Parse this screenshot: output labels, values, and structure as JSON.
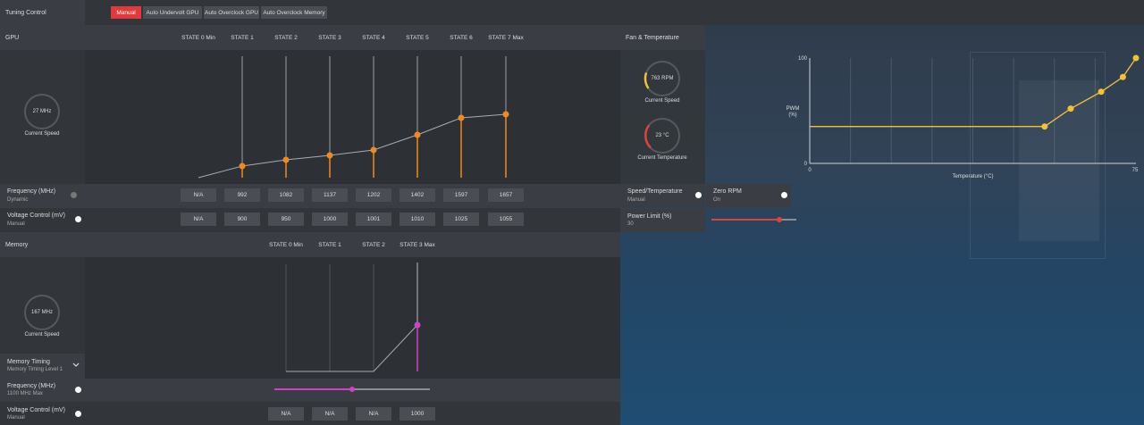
{
  "tuning": {
    "title": "Tuning Control",
    "tabs": [
      "Manual",
      "Auto Undervolt GPU",
      "Auto Overclock GPU",
      "Auto Overclock Memory"
    ]
  },
  "gpu": {
    "title": "GPU",
    "states": [
      "STATE 0 Min",
      "STATE 1",
      "STATE 2",
      "STATE 3",
      "STATE 4",
      "STATE 5",
      "STATE 6",
      "STATE 7 Max"
    ],
    "gauge": {
      "value": "27 MHz",
      "label": "Current Speed"
    },
    "frequency": {
      "label": "Frequency (MHz)",
      "sub": "Dynamic",
      "values": [
        "N/A",
        "992",
        "1082",
        "1137",
        "1202",
        "1402",
        "1597",
        "1657"
      ]
    },
    "voltage": {
      "label": "Voltage Control (mV)",
      "sub": "Manual",
      "values": [
        "N/A",
        "900",
        "950",
        "1000",
        "1001",
        "1010",
        "1025",
        "1055"
      ]
    }
  },
  "memory": {
    "title": "Memory",
    "states": [
      "STATE 0 Min",
      "STATE 1",
      "STATE 2",
      "STATE 3 Max"
    ],
    "gauge": {
      "value": "167 MHz",
      "label": "Current Speed"
    },
    "timing": {
      "label": "Memory Timing",
      "sub": "Memory Timing Level 1"
    },
    "frequency": {
      "label": "Frequency (MHz)",
      "sub": "1100 MHz Max",
      "slider": 0.5
    },
    "voltage": {
      "label": "Voltage Control (mV)",
      "sub": "Manual",
      "values": [
        "N/A",
        "N/A",
        "N/A",
        "1000"
      ]
    }
  },
  "fan": {
    "title": "Fan & Temperature",
    "speed_gauge": {
      "value": "763 RPM",
      "label": "Current Speed"
    },
    "temp_gauge": {
      "value": "23 °C",
      "label": "Current Temperature"
    },
    "speed_temp": {
      "label": "Speed/Temperature",
      "sub": "Manual"
    },
    "zero_rpm": {
      "label": "Zero RPM",
      "sub": "On"
    },
    "power_limit": {
      "label": "Power Limit (%)",
      "sub": "30",
      "slider": 0.8
    }
  },
  "chart_data": {
    "type": "line",
    "ylabel": "PWM\n(%)",
    "xlabel": "Temperature (°C)",
    "xlim": [
      0,
      75
    ],
    "ylim": [
      0,
      100
    ],
    "x_tick_labels": [
      "0",
      "75"
    ],
    "y_tick_labels": [
      "0",
      "100"
    ],
    "series": [
      {
        "x": [
          0,
          54,
          60,
          67,
          72,
          75
        ],
        "y": [
          35,
          35,
          52,
          68,
          82,
          100
        ]
      }
    ],
    "color": "#f2c232"
  }
}
